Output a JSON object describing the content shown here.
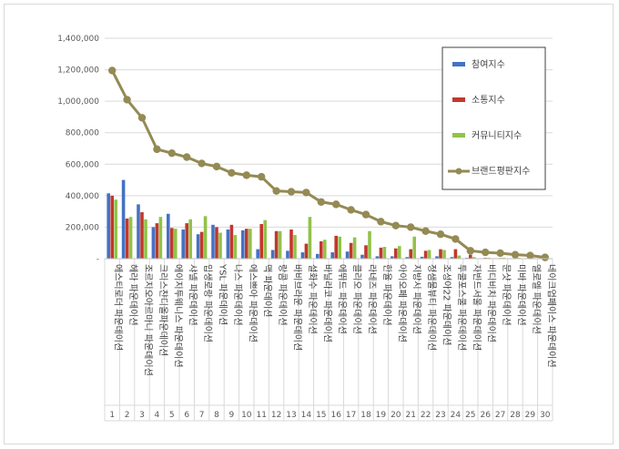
{
  "chart_data": {
    "type": "bar",
    "title": "",
    "xlabel": "",
    "ylabel": "",
    "ylim": [
      0,
      1400000
    ],
    "yticks": [
      "-",
      "200,000",
      "400,000",
      "600,000",
      "800,000",
      "1,000,000",
      "1,200,000",
      "1,400,000"
    ],
    "grid": true,
    "legend_position": "right",
    "categories": [
      "에스티로더 파운데이션",
      "헤라 파운데이션",
      "조르지오아르마니 파운데이션",
      "크리스챤디올파운데이션",
      "에이지투웨니스 파운데이션",
      "샤넬 파운데이션",
      "입생로랑 파운데이션",
      "YSL 파운데이션",
      "나스 파운데이션",
      "에스쁘아 파운데이션",
      "맥 파운데이션",
      "랑콤 파운데이션",
      "바비브라운 파운데이션",
      "설화수 파운데이션",
      "바닐라코 파운데이션",
      "에뛰드 파운데이션",
      "클리오 파운데이션",
      "라네즈 파운데이션",
      "한율 파운데이션",
      "아이오페 파운데이션",
      "지방시 파운데이션",
      "정샘물뷰티 파운데이션",
      "조성아22 파운데이션",
      "투쿨포스쿨 파운데이션",
      "자빈드서울 파운데이션",
      "비디비치 파운데이션",
      "문샷 파운데이션",
      "미바 파운데이션",
      "엘로엘 파운데이션",
      "네이크업페이스 파운데이션"
    ],
    "indices": [
      "1",
      "2",
      "3",
      "4",
      "5",
      "6",
      "7",
      "8",
      "9",
      "10",
      "11",
      "12",
      "13",
      "14",
      "15",
      "16",
      "17",
      "18",
      "19",
      "20",
      "21",
      "22",
      "23",
      "24",
      "25",
      "26",
      "27",
      "28",
      "29",
      "30"
    ],
    "series": [
      {
        "name": "참여지수",
        "kind": "bar",
        "color": "#4472c4",
        "values": [
          415000,
          500000,
          345000,
          200000,
          285000,
          185000,
          155000,
          215000,
          185000,
          180000,
          60000,
          55000,
          50000,
          40000,
          30000,
          40000,
          45000,
          25000,
          15000,
          15000,
          10000,
          12000,
          15000,
          10000,
          5000,
          3000,
          3000,
          2000,
          2000,
          1000
        ]
      },
      {
        "name": "소통지수",
        "kind": "bar",
        "color": "#c0392b",
        "values": [
          400000,
          255000,
          295000,
          225000,
          195000,
          225000,
          170000,
          200000,
          215000,
          190000,
          220000,
          175000,
          185000,
          95000,
          110000,
          145000,
          100000,
          85000,
          70000,
          65000,
          60000,
          50000,
          60000,
          60000,
          25000,
          5000,
          4000,
          3000,
          3000,
          2000
        ]
      },
      {
        "name": "커뮤니티지수",
        "kind": "bar",
        "color": "#92c24a",
        "values": [
          375000,
          265000,
          250000,
          265000,
          190000,
          250000,
          270000,
          165000,
          150000,
          190000,
          245000,
          175000,
          150000,
          265000,
          120000,
          140000,
          135000,
          175000,
          75000,
          80000,
          140000,
          55000,
          55000,
          20000,
          10000,
          5000,
          5000,
          5000,
          4000,
          3000
        ]
      },
      {
        "name": "브랜드평판지수",
        "kind": "line",
        "color": "#948a54",
        "values": [
          1195000,
          1010000,
          895000,
          695000,
          670000,
          645000,
          605000,
          585000,
          545000,
          530000,
          520000,
          430000,
          425000,
          420000,
          360000,
          345000,
          310000,
          280000,
          235000,
          210000,
          200000,
          175000,
          155000,
          125000,
          50000,
          40000,
          35000,
          25000,
          20000,
          8000
        ]
      }
    ]
  }
}
